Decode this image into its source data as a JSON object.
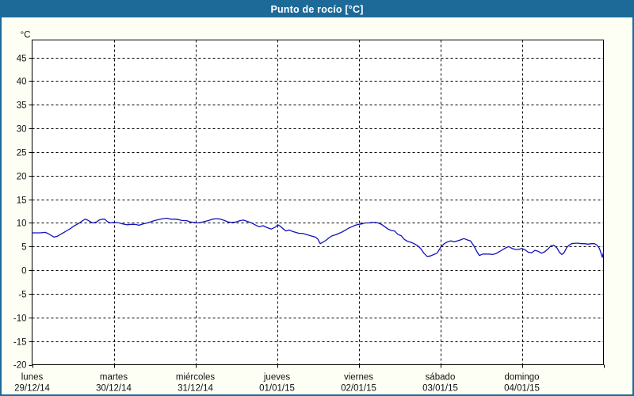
{
  "window": {
    "title": "Punto de rocío [°C]"
  },
  "colors": {
    "titlebar_blue": "#1d6a99",
    "window_border_blue": "#1d6a99",
    "panel_background": "#fdfff5",
    "plot_background": "#ffffff",
    "grid_color": "#000000",
    "axis_color": "#000000",
    "line_color": "#1212bb",
    "title_text": "#ffffff",
    "label_text": "#111111"
  },
  "chart_data": {
    "type": "line",
    "title": "Punto de rocío [°C]",
    "y_unit_label": "°C",
    "ylabel": "",
    "xlabel": "",
    "grid": "dashed-on",
    "legend": "none",
    "ylim": [
      -20,
      48.7
    ],
    "y_ticks": [
      45,
      40,
      35,
      30,
      25,
      20,
      15,
      10,
      5,
      0,
      -5,
      -10,
      -15,
      -20
    ],
    "xlim_days": [
      0,
      7
    ],
    "x_days": [
      {
        "name": "lunes",
        "date": "29/12/14"
      },
      {
        "name": "martes",
        "date": "30/12/14"
      },
      {
        "name": "miércoles",
        "date": "31/12/14"
      },
      {
        "name": "jueves",
        "date": "01/01/15"
      },
      {
        "name": "viernes",
        "date": "02/01/15"
      },
      {
        "name": "sábado",
        "date": "03/01/15"
      },
      {
        "name": "domingo",
        "date": "04/01/15"
      }
    ],
    "series": [
      {
        "name": "Punto de rocío",
        "color": "#1212bb",
        "points": [
          [
            0.0,
            7.9
          ],
          [
            0.05,
            7.9
          ],
          [
            0.1,
            7.9
          ],
          [
            0.16,
            8.0
          ],
          [
            0.19,
            7.8
          ],
          [
            0.23,
            7.4
          ],
          [
            0.27,
            7.0
          ],
          [
            0.31,
            7.2
          ],
          [
            0.35,
            7.6
          ],
          [
            0.39,
            8.0
          ],
          [
            0.43,
            8.4
          ],
          [
            0.47,
            8.8
          ],
          [
            0.5,
            9.2
          ],
          [
            0.54,
            9.6
          ],
          [
            0.58,
            10.0
          ],
          [
            0.62,
            10.5
          ],
          [
            0.65,
            10.8
          ],
          [
            0.68,
            10.6
          ],
          [
            0.72,
            10.2
          ],
          [
            0.75,
            10.0
          ],
          [
            0.79,
            10.2
          ],
          [
            0.82,
            10.6
          ],
          [
            0.86,
            10.8
          ],
          [
            0.89,
            10.8
          ],
          [
            0.92,
            10.3
          ],
          [
            0.96,
            10.0
          ],
          [
            0.99,
            10.1
          ],
          [
            1.02,
            10.1
          ],
          [
            1.07,
            10.0
          ],
          [
            1.11,
            9.8
          ],
          [
            1.16,
            9.6
          ],
          [
            1.21,
            9.7
          ],
          [
            1.26,
            9.7
          ],
          [
            1.31,
            9.5
          ],
          [
            1.36,
            9.8
          ],
          [
            1.41,
            10.0
          ],
          [
            1.45,
            10.2
          ],
          [
            1.5,
            10.5
          ],
          [
            1.55,
            10.7
          ],
          [
            1.6,
            10.9
          ],
          [
            1.65,
            11.0
          ],
          [
            1.7,
            10.8
          ],
          [
            1.75,
            10.8
          ],
          [
            1.79,
            10.7
          ],
          [
            1.84,
            10.5
          ],
          [
            1.89,
            10.5
          ],
          [
            1.94,
            10.2
          ],
          [
            1.99,
            10.1
          ],
          [
            2.02,
            10.0
          ],
          [
            2.07,
            10.1
          ],
          [
            2.11,
            10.3
          ],
          [
            2.16,
            10.5
          ],
          [
            2.21,
            10.8
          ],
          [
            2.26,
            10.9
          ],
          [
            2.31,
            10.8
          ],
          [
            2.36,
            10.5
          ],
          [
            2.4,
            10.2
          ],
          [
            2.45,
            10.1
          ],
          [
            2.5,
            10.2
          ],
          [
            2.55,
            10.5
          ],
          [
            2.59,
            10.6
          ],
          [
            2.64,
            10.3
          ],
          [
            2.69,
            10.0
          ],
          [
            2.73,
            9.6
          ],
          [
            2.78,
            9.2
          ],
          [
            2.83,
            9.4
          ],
          [
            2.88,
            9.0
          ],
          [
            2.93,
            8.7
          ],
          [
            2.98,
            9.1
          ],
          [
            3.01,
            9.6
          ],
          [
            3.04,
            9.3
          ],
          [
            3.08,
            8.7
          ],
          [
            3.11,
            8.3
          ],
          [
            3.15,
            8.5
          ],
          [
            3.19,
            8.2
          ],
          [
            3.23,
            8.0
          ],
          [
            3.27,
            7.8
          ],
          [
            3.31,
            7.8
          ],
          [
            3.35,
            7.6
          ],
          [
            3.39,
            7.4
          ],
          [
            3.43,
            7.2
          ],
          [
            3.47,
            7.0
          ],
          [
            3.5,
            6.6
          ],
          [
            3.53,
            5.6
          ],
          [
            3.56,
            5.9
          ],
          [
            3.6,
            6.3
          ],
          [
            3.64,
            6.9
          ],
          [
            3.68,
            7.3
          ],
          [
            3.72,
            7.5
          ],
          [
            3.76,
            7.8
          ],
          [
            3.8,
            8.1
          ],
          [
            3.84,
            8.5
          ],
          [
            3.88,
            8.9
          ],
          [
            3.92,
            9.2
          ],
          [
            3.96,
            9.5
          ],
          [
            4.0,
            9.7
          ],
          [
            4.04,
            9.8
          ],
          [
            4.08,
            10.0
          ],
          [
            4.12,
            10.0
          ],
          [
            4.16,
            10.1
          ],
          [
            4.2,
            10.1
          ],
          [
            4.24,
            10.0
          ],
          [
            4.28,
            9.7
          ],
          [
            4.32,
            9.2
          ],
          [
            4.36,
            8.7
          ],
          [
            4.4,
            8.4
          ],
          [
            4.44,
            8.3
          ],
          [
            4.48,
            7.6
          ],
          [
            4.52,
            7.3
          ],
          [
            4.56,
            6.5
          ],
          [
            4.6,
            6.1
          ],
          [
            4.64,
            5.9
          ],
          [
            4.68,
            5.6
          ],
          [
            4.72,
            5.2
          ],
          [
            4.76,
            4.6
          ],
          [
            4.8,
            3.6
          ],
          [
            4.84,
            2.9
          ],
          [
            4.88,
            3.0
          ],
          [
            4.92,
            3.3
          ],
          [
            4.96,
            3.6
          ],
          [
            4.99,
            4.4
          ],
          [
            5.01,
            5.0
          ],
          [
            5.05,
            5.6
          ],
          [
            5.09,
            6.0
          ],
          [
            5.13,
            6.2
          ],
          [
            5.17,
            6.0
          ],
          [
            5.21,
            6.2
          ],
          [
            5.25,
            6.4
          ],
          [
            5.29,
            6.7
          ],
          [
            5.33,
            6.4
          ],
          [
            5.37,
            6.2
          ],
          [
            5.41,
            5.2
          ],
          [
            5.45,
            3.9
          ],
          [
            5.48,
            3.1
          ],
          [
            5.52,
            3.4
          ],
          [
            5.56,
            3.4
          ],
          [
            5.6,
            3.4
          ],
          [
            5.64,
            3.3
          ],
          [
            5.68,
            3.5
          ],
          [
            5.72,
            3.9
          ],
          [
            5.76,
            4.3
          ],
          [
            5.8,
            4.7
          ],
          [
            5.84,
            5.0
          ],
          [
            5.88,
            4.6
          ],
          [
            5.92,
            4.4
          ],
          [
            5.96,
            4.4
          ],
          [
            6.0,
            4.6
          ],
          [
            6.04,
            4.3
          ],
          [
            6.08,
            3.8
          ],
          [
            6.12,
            3.7
          ],
          [
            6.16,
            4.2
          ],
          [
            6.2,
            4.0
          ],
          [
            6.24,
            3.6
          ],
          [
            6.28,
            3.9
          ],
          [
            6.32,
            4.5
          ],
          [
            6.36,
            5.2
          ],
          [
            6.39,
            5.3
          ],
          [
            6.43,
            4.7
          ],
          [
            6.46,
            3.8
          ],
          [
            6.49,
            3.3
          ],
          [
            6.52,
            3.8
          ],
          [
            6.55,
            4.8
          ],
          [
            6.58,
            5.3
          ],
          [
            6.61,
            5.6
          ],
          [
            6.65,
            5.7
          ],
          [
            6.69,
            5.7
          ],
          [
            6.73,
            5.6
          ],
          [
            6.77,
            5.6
          ],
          [
            6.81,
            5.5
          ],
          [
            6.85,
            5.6
          ],
          [
            6.89,
            5.6
          ],
          [
            6.92,
            5.3
          ],
          [
            6.95,
            4.6
          ],
          [
            6.97,
            3.6
          ],
          [
            6.985,
            2.7
          ],
          [
            7.0,
            3.8
          ]
        ]
      }
    ]
  }
}
